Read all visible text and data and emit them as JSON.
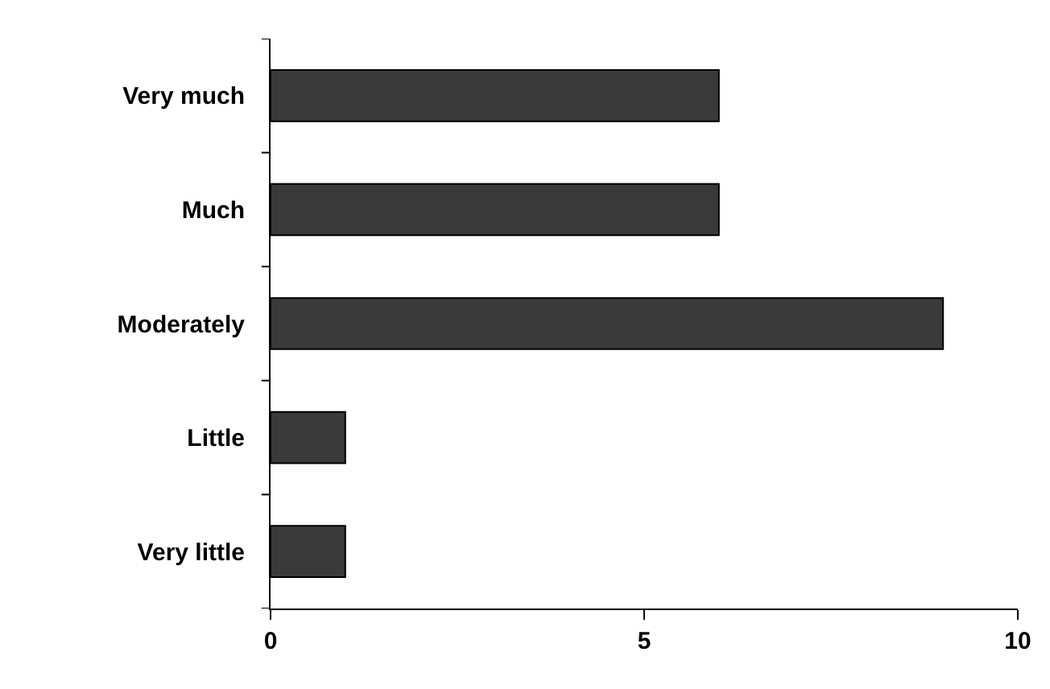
{
  "chart_data": {
    "type": "bar",
    "orientation": "horizontal",
    "categories": [
      "Very much",
      "Much",
      "Moderately",
      "Little",
      "Very little"
    ],
    "values": [
      6,
      6,
      9,
      1,
      1
    ],
    "color": "#3a3a3a",
    "xlim": [
      0,
      10
    ],
    "xticks": [
      0,
      5,
      10
    ],
    "legend": false
  }
}
